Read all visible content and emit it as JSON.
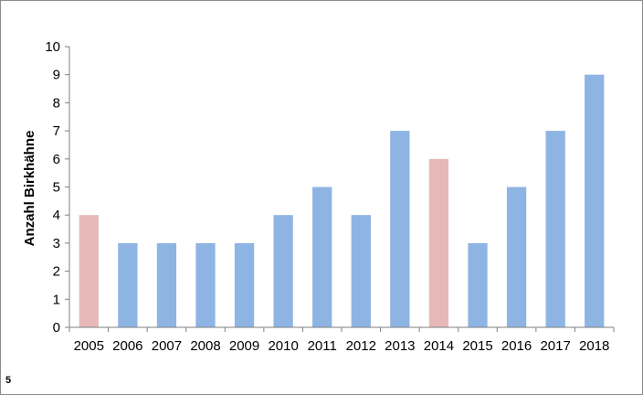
{
  "chart_data": {
    "type": "bar",
    "title": "",
    "xlabel": "",
    "ylabel": "Anzahl Birkhähne",
    "ylim": [
      0,
      10
    ],
    "yticks": [
      0,
      1,
      2,
      3,
      4,
      5,
      6,
      7,
      8,
      9,
      10
    ],
    "categories": [
      "2005",
      "2006",
      "2007",
      "2008",
      "2009",
      "2010",
      "2011",
      "2012",
      "2013",
      "2014",
      "2015",
      "2016",
      "2017",
      "2018"
    ],
    "values": [
      4,
      3,
      3,
      3,
      3,
      4,
      5,
      4,
      7,
      6,
      3,
      5,
      7,
      9
    ],
    "highlighted_categories": [
      "2005",
      "2014"
    ],
    "colors": {
      "default": "#8eb4e3",
      "highlight": "#e6b9b8"
    },
    "grid": false,
    "legend": "none"
  },
  "footnote": "5"
}
